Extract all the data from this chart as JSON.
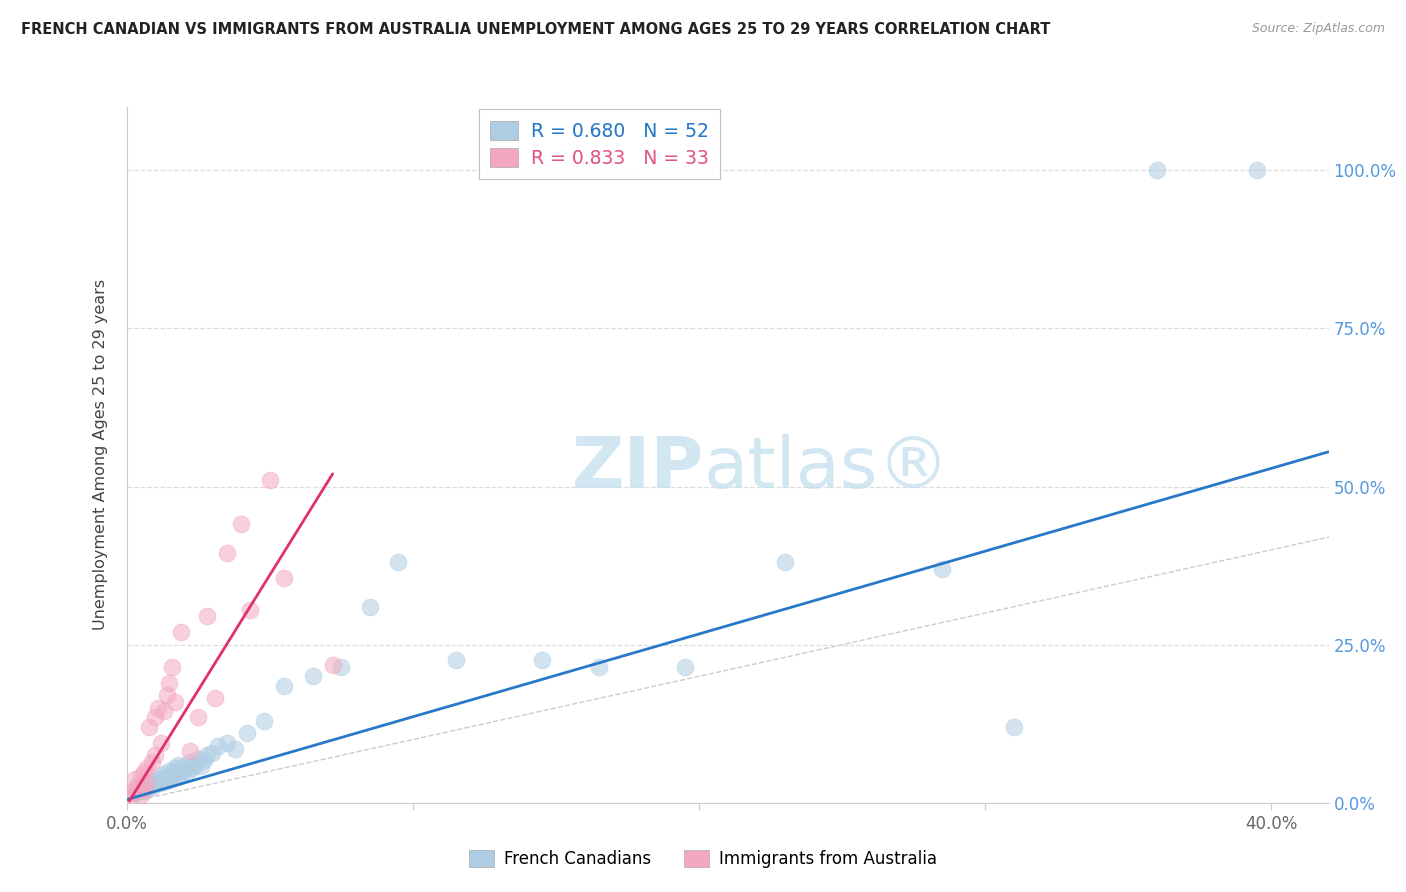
{
  "title": "FRENCH CANADIAN VS IMMIGRANTS FROM AUSTRALIA UNEMPLOYMENT AMONG AGES 25 TO 29 YEARS CORRELATION CHART",
  "source": "Source: ZipAtlas.com",
  "ylabel": "Unemployment Among Ages 25 to 29 years",
  "legend_label_1": "French Canadians",
  "legend_label_2": "Immigrants from Australia",
  "r1": 0.68,
  "n1": 52,
  "r2": 0.833,
  "n2": 33,
  "color_blue_scatter": "#aecde3",
  "color_pink_scatter": "#f4a8c0",
  "color_blue_line": "#2878c8",
  "color_pink_line": "#e03070",
  "color_text_right": "#5599dd",
  "color_text_blue": "#2878c8",
  "color_text_pink": "#e0558a",
  "xlim": [
    0.0,
    0.42
  ],
  "ylim": [
    0.0,
    1.1
  ],
  "blue_scatter_x": [
    0.003,
    0.004,
    0.005,
    0.006,
    0.007,
    0.008,
    0.009,
    0.01,
    0.01,
    0.011,
    0.012,
    0.013,
    0.013,
    0.014,
    0.015,
    0.015,
    0.016,
    0.017,
    0.017,
    0.018,
    0.018,
    0.019,
    0.02,
    0.02,
    0.021,
    0.022,
    0.023,
    0.024,
    0.025,
    0.026,
    0.027,
    0.028,
    0.03,
    0.032,
    0.035,
    0.038,
    0.042,
    0.048,
    0.055,
    0.065,
    0.075,
    0.085,
    0.095,
    0.115,
    0.145,
    0.165,
    0.195,
    0.23,
    0.285,
    0.31,
    0.36,
    0.395
  ],
  "blue_scatter_y": [
    0.015,
    0.02,
    0.025,
    0.018,
    0.022,
    0.028,
    0.025,
    0.035,
    0.03,
    0.038,
    0.032,
    0.04,
    0.045,
    0.035,
    0.042,
    0.05,
    0.038,
    0.048,
    0.055,
    0.04,
    0.06,
    0.045,
    0.058,
    0.052,
    0.048,
    0.065,
    0.055,
    0.06,
    0.07,
    0.058,
    0.068,
    0.075,
    0.078,
    0.09,
    0.095,
    0.085,
    0.11,
    0.13,
    0.185,
    0.2,
    0.215,
    0.31,
    0.38,
    0.225,
    0.225,
    0.215,
    0.215,
    0.38,
    0.37,
    0.12,
    1.0,
    1.0
  ],
  "pink_scatter_x": [
    0.001,
    0.002,
    0.003,
    0.003,
    0.004,
    0.005,
    0.005,
    0.006,
    0.006,
    0.007,
    0.007,
    0.008,
    0.009,
    0.01,
    0.01,
    0.011,
    0.012,
    0.013,
    0.014,
    0.015,
    0.016,
    0.017,
    0.019,
    0.022,
    0.025,
    0.028,
    0.031,
    0.035,
    0.04,
    0.043,
    0.05,
    0.055,
    0.072
  ],
  "pink_scatter_y": [
    0.008,
    0.015,
    0.022,
    0.038,
    0.028,
    0.012,
    0.042,
    0.022,
    0.048,
    0.032,
    0.055,
    0.12,
    0.065,
    0.075,
    0.135,
    0.15,
    0.095,
    0.145,
    0.17,
    0.19,
    0.215,
    0.16,
    0.27,
    0.082,
    0.135,
    0.295,
    0.165,
    0.395,
    0.44,
    0.305,
    0.51,
    0.355,
    0.218
  ],
  "blue_line_x": [
    0.0,
    0.42
  ],
  "blue_line_y": [
    0.005,
    0.555
  ],
  "pink_line_x": [
    0.001,
    0.072
  ],
  "pink_line_y": [
    0.003,
    0.52
  ],
  "ref_line_x": [
    0.0,
    1.05
  ],
  "ref_line_y": [
    0.0,
    1.05
  ],
  "yticks": [
    0.0,
    0.25,
    0.5,
    0.75,
    1.0
  ],
  "xticks": [
    0.0,
    0.1,
    0.2,
    0.3,
    0.4
  ],
  "xtick_labels_show": [
    "0.0%",
    "",
    "",
    "",
    "40.0%"
  ],
  "right_tick_labels": [
    "0.0%",
    "25.0%",
    "50.0%",
    "75.0%",
    "100.0%"
  ],
  "watermark_zip": "ZIP",
  "watermark_atlas": "atlas®"
}
